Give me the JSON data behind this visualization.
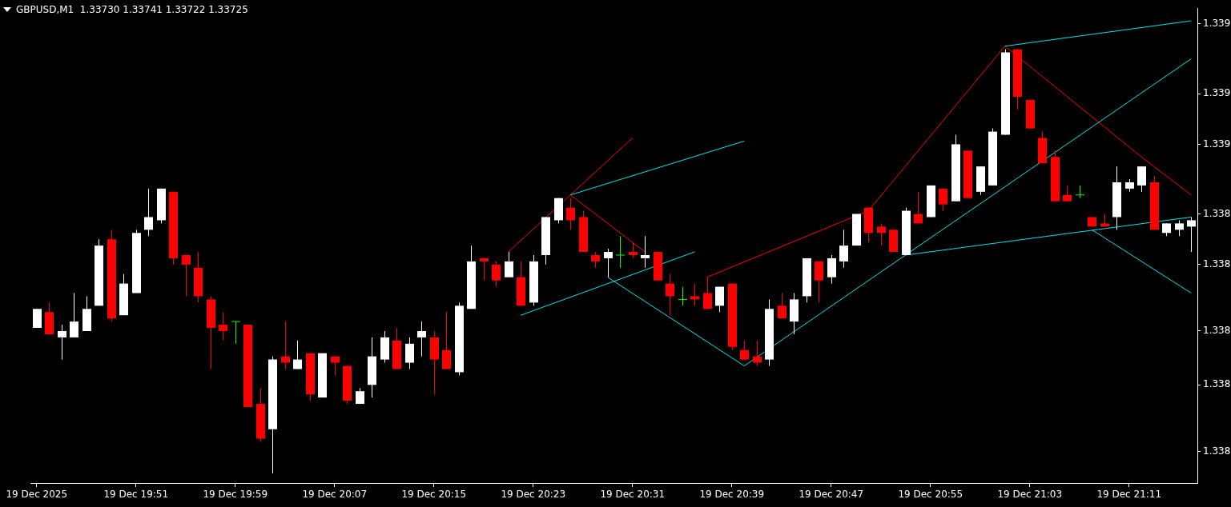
{
  "chart_data": {
    "type": "candlestick",
    "title": "GBPUSD,M1  1.33730 1.33741 1.33722 1.33725",
    "categories": [
      "19 Dec 2025",
      null,
      null,
      null,
      null,
      null,
      null,
      null,
      "19 Dec 19:51",
      null,
      null,
      null,
      null,
      null,
      null,
      null,
      "19 Dec 19:59",
      null,
      null,
      null,
      null,
      null,
      null,
      null,
      "19 Dec 20:07",
      null,
      null,
      null,
      null,
      null,
      null,
      null,
      "19 Dec 20:15",
      null,
      null,
      null,
      null,
      null,
      null,
      null,
      "19 Dec 20:23",
      null,
      null,
      null,
      null,
      null,
      null,
      null,
      "19 Dec 20:31",
      null,
      null,
      null,
      null,
      null,
      null,
      null,
      "19 Dec 20:39",
      null,
      null,
      null,
      null,
      null,
      null,
      null,
      "19 Dec 20:47",
      null,
      null,
      null,
      null,
      null,
      null,
      null,
      "19 Dec 20:55",
      null,
      null,
      null,
      null,
      null,
      null,
      null,
      "19 Dec 21:03",
      null,
      null,
      null,
      null,
      null,
      null,
      null,
      "19 Dec 21:11",
      null,
      null,
      null,
      null,
      null
    ],
    "ohlc": [
      [
        1.33803,
        1.33809,
        1.33803,
        1.33809
      ],
      [
        1.33808,
        1.33811,
        1.33801,
        1.33801
      ],
      [
        1.338,
        1.33804,
        1.33793,
        1.33802
      ],
      [
        1.338,
        1.33814,
        1.338,
        1.33805
      ],
      [
        1.33802,
        1.33813,
        1.33802,
        1.33809
      ],
      [
        1.3381,
        1.33831,
        1.3381,
        1.33829
      ],
      [
        1.33831,
        1.33834,
        1.33805,
        1.33806
      ],
      [
        1.33807,
        1.3382,
        1.33807,
        1.33817
      ],
      [
        1.33814,
        1.33834,
        1.33814,
        1.33833
      ],
      [
        1.33834,
        1.33847,
        1.33832,
        1.33838
      ],
      [
        1.33837,
        1.33847,
        1.33836,
        1.33847
      ],
      [
        1.33846,
        1.33846,
        1.33823,
        1.33825
      ],
      [
        1.33826,
        1.33826,
        1.33813,
        1.33823
      ],
      [
        1.33822,
        1.33827,
        1.33811,
        1.33813
      ],
      [
        1.33812,
        1.33813,
        1.3379,
        1.33803
      ],
      [
        1.33804,
        1.33808,
        1.33799,
        1.33802
      ],
      [
        1.33805,
        1.33805,
        1.33798,
        1.33805
      ],
      [
        1.33804,
        1.33804,
        1.33778,
        1.33778
      ],
      [
        1.33779,
        1.33784,
        1.33767,
        1.33768
      ],
      [
        1.33771,
        1.33794,
        1.33757,
        1.33793
      ],
      [
        1.33794,
        1.33805,
        1.3379,
        1.33792
      ],
      [
        1.3379,
        1.33799,
        1.3379,
        1.33793
      ],
      [
        1.33795,
        1.33795,
        1.3378,
        1.33782
      ],
      [
        1.33781,
        1.33795,
        1.33781,
        1.33795
      ],
      [
        1.33794,
        1.33794,
        1.33788,
        1.33792
      ],
      [
        1.33791,
        1.33791,
        1.33779,
        1.3378
      ],
      [
        1.33779,
        1.33784,
        1.33779,
        1.33783
      ],
      [
        1.33785,
        1.338,
        1.33781,
        1.33794
      ],
      [
        1.33793,
        1.33802,
        1.33792,
        1.338
      ],
      [
        1.33799,
        1.33803,
        1.3379,
        1.3379
      ],
      [
        1.33792,
        1.338,
        1.3379,
        1.33798
      ],
      [
        1.338,
        1.33805,
        1.33794,
        1.33802
      ],
      [
        1.338,
        1.33802,
        1.33782,
        1.33793
      ],
      [
        1.33796,
        1.33808,
        1.3379,
        1.3379
      ],
      [
        1.33789,
        1.33811,
        1.33788,
        1.3381
      ],
      [
        1.33809,
        1.33829,
        1.33809,
        1.33824
      ],
      [
        1.33825,
        1.33825,
        1.33818,
        1.33824
      ],
      [
        1.33823,
        1.33824,
        1.33816,
        1.33818
      ],
      [
        1.33819,
        1.33827,
        1.33819,
        1.33824
      ],
      [
        1.33819,
        1.33824,
        1.3381,
        1.3381
      ],
      [
        1.33811,
        1.33826,
        1.3381,
        1.33824
      ],
      [
        1.33826,
        1.33838,
        1.33823,
        1.33838
      ],
      [
        1.33837,
        1.33844,
        1.33836,
        1.33844
      ],
      [
        1.33841,
        1.33844,
        1.33834,
        1.33837
      ],
      [
        1.33838,
        1.3384,
        1.33827,
        1.33827
      ],
      [
        1.33826,
        1.33827,
        1.33822,
        1.33824
      ],
      [
        1.33825,
        1.33828,
        1.33819,
        1.33827
      ],
      [
        1.33826,
        1.33832,
        1.33822,
        1.33826
      ],
      [
        1.33827,
        1.3383,
        1.33825,
        1.33826
      ],
      [
        1.33825,
        1.33832,
        1.33822,
        1.33826
      ],
      [
        1.33827,
        1.33827,
        1.33818,
        1.33818
      ],
      [
        1.33817,
        1.3382,
        1.33807,
        1.33813
      ],
      [
        1.33812,
        1.33816,
        1.3381,
        1.33812
      ],
      [
        1.33813,
        1.33817,
        1.3381,
        1.33812
      ],
      [
        1.33814,
        1.33819,
        1.33809,
        1.33809
      ],
      [
        1.3381,
        1.33816,
        1.33808,
        1.33816
      ],
      [
        1.33817,
        1.33817,
        1.33796,
        1.33797
      ],
      [
        1.33796,
        1.33799,
        1.33793,
        1.33793
      ],
      [
        1.33794,
        1.33799,
        1.33791,
        1.33792
      ],
      [
        1.33793,
        1.33812,
        1.33791,
        1.33809
      ],
      [
        1.3381,
        1.33814,
        1.33806,
        1.33806
      ],
      [
        1.33805,
        1.33814,
        1.33801,
        1.33812
      ],
      [
        1.33813,
        1.33825,
        1.33811,
        1.33825
      ],
      [
        1.33824,
        1.33824,
        1.33811,
        1.33818
      ],
      [
        1.33819,
        1.33826,
        1.33817,
        1.33825
      ],
      [
        1.33824,
        1.33834,
        1.33822,
        1.33829
      ],
      [
        1.33829,
        1.33839,
        1.33829,
        1.33839
      ],
      [
        1.33841,
        1.33841,
        1.3383,
        1.33833
      ],
      [
        1.33835,
        1.33836,
        1.33829,
        1.33833
      ],
      [
        1.33834,
        1.33834,
        1.33827,
        1.33827
      ],
      [
        1.33826,
        1.33841,
        1.33826,
        1.3384
      ],
      [
        1.33839,
        1.33846,
        1.33836,
        1.33836
      ],
      [
        1.33838,
        1.33848,
        1.33838,
        1.33848
      ],
      [
        1.33847,
        1.33847,
        1.3384,
        1.33842
      ],
      [
        1.33843,
        1.33864,
        1.33843,
        1.33861
      ],
      [
        1.33859,
        1.33859,
        1.33844,
        1.33844
      ],
      [
        1.33846,
        1.33854,
        1.33845,
        1.33854
      ],
      [
        1.33848,
        1.33866,
        1.33848,
        1.33865
      ],
      [
        1.33864,
        1.33891,
        1.33864,
        1.3389
      ],
      [
        1.33891,
        1.33891,
        1.33872,
        1.33876
      ],
      [
        1.33875,
        1.33875,
        1.33866,
        1.33866
      ],
      [
        1.33863,
        1.33865,
        1.33855,
        1.33855
      ],
      [
        1.33857,
        1.33859,
        1.33843,
        1.33843
      ],
      [
        1.33845,
        1.33848,
        1.33843,
        1.33843
      ],
      [
        1.33845,
        1.33848,
        1.33844,
        1.33845
      ],
      [
        1.33838,
        1.33838,
        1.33835,
        1.33835
      ],
      [
        1.33836,
        1.33839,
        1.33835,
        1.33835
      ],
      [
        1.33838,
        1.33854,
        1.33834,
        1.33849
      ],
      [
        1.33847,
        1.3385,
        1.33846,
        1.33849
      ],
      [
        1.33848,
        1.33854,
        1.33846,
        1.33854
      ],
      [
        1.33849,
        1.33851,
        1.33834,
        1.33834
      ],
      [
        1.33833,
        1.33836,
        1.33832,
        1.33836
      ],
      [
        1.33834,
        1.33837,
        1.33832,
        1.33836
      ],
      [
        1.33835,
        1.33838,
        1.33827,
        1.33837
      ]
    ],
    "colors": [
      "#ffffff",
      "#ff0000",
      "#ffffff",
      "#ffffff",
      "#ffffff",
      "#ffffff",
      "#ff0000",
      "#ffffff",
      "#ffffff",
      "#ffffff",
      "#ffffff",
      "#ff0000",
      "#ff0000",
      "#ff0000",
      "#ff0000",
      "#ff0000",
      "#00ff00",
      "#ff0000",
      "#ff0000",
      "#ffffff",
      "#ff0000",
      "#ffffff",
      "#ff0000",
      "#ffffff",
      "#ff0000",
      "#ff0000",
      "#ffffff",
      "#ffffff",
      "#ffffff",
      "#ff0000",
      "#ffffff",
      "#ffffff",
      "#ff0000",
      "#ff0000",
      "#ffffff",
      "#ffffff",
      "#ff0000",
      "#ff0000",
      "#ffffff",
      "#ff0000",
      "#ffffff",
      "#ffffff",
      "#ffffff",
      "#ff0000",
      "#ff0000",
      "#ff0000",
      "#ffffff",
      "#00ff00",
      "#ff0000",
      "#ffffff",
      "#ff0000",
      "#ff0000",
      "#00ff00",
      "#ff0000",
      "#ff0000",
      "#ffffff",
      "#ff0000",
      "#ff0000",
      "#ff0000",
      "#ffffff",
      "#ff0000",
      "#ffffff",
      "#ffffff",
      "#ff0000",
      "#ffffff",
      "#ffffff",
      "#ffffff",
      "#ff0000",
      "#ff0000",
      "#ff0000",
      "#ffffff",
      "#ff0000",
      "#ffffff",
      "#ff0000",
      "#ffffff",
      "#ff0000",
      "#ffffff",
      "#ffffff",
      "#ffffff",
      "#ff0000",
      "#ff0000",
      "#ff0000",
      "#ff0000",
      "#ff0000",
      "#00ff00",
      "#ff0000",
      "#ff0000",
      "#ffffff",
      "#ffffff",
      "#ffffff",
      "#ff0000",
      "#ffffff",
      "#ffffff",
      "#ffffff"
    ],
    "series": [
      {
        "type": "line",
        "color": "#00e5ee",
        "values": [
          null,
          null,
          null,
          null,
          null,
          null,
          null,
          null,
          null,
          null,
          null,
          null,
          null,
          null,
          null,
          null,
          null,
          null,
          null,
          null,
          null,
          null,
          null,
          null,
          null,
          null,
          null,
          null,
          null,
          null,
          null,
          null,
          null,
          null,
          null,
          null,
          null,
          null,
          null,
          1.33807,
          null,
          null,
          null,
          null,
          null,
          null,
          null,
          null,
          null,
          null,
          null,
          null,
          null,
          1.33827,
          null,
          null,
          null,
          null,
          null,
          null,
          null,
          null,
          null,
          null,
          null,
          null,
          null,
          null,
          null,
          null,
          null,
          null,
          null,
          null,
          null,
          null,
          null,
          null,
          null,
          null,
          null,
          null,
          null,
          null,
          null,
          null,
          null,
          null,
          null,
          null,
          null,
          null,
          null,
          null
        ]
      },
      {
        "type": "line",
        "color": "#00e5ee",
        "values": [
          null,
          null,
          null,
          null,
          null,
          null,
          null,
          null,
          null,
          null,
          null,
          null,
          null,
          null,
          null,
          null,
          null,
          null,
          null,
          null,
          null,
          null,
          null,
          null,
          null,
          null,
          null,
          null,
          null,
          null,
          null,
          null,
          null,
          null,
          null,
          null,
          null,
          null,
          null,
          null,
          null,
          null,
          null,
          1.33845,
          null,
          null,
          null,
          null,
          null,
          null,
          null,
          null,
          null,
          null,
          null,
          null,
          null,
          1.33862,
          null,
          null,
          null,
          null,
          null,
          null,
          null,
          null,
          null,
          null,
          null,
          null,
          null,
          null,
          null,
          null,
          null,
          null,
          null,
          null,
          null,
          null,
          null,
          null,
          null,
          null,
          null,
          null,
          null,
          null,
          null,
          null,
          null,
          null,
          null,
          null
        ]
      },
      {
        "type": "line",
        "color": "#00e5ee",
        "values": [
          null,
          null,
          null,
          null,
          null,
          null,
          null,
          null,
          null,
          null,
          null,
          null,
          null,
          null,
          null,
          null,
          null,
          null,
          null,
          null,
          null,
          null,
          null,
          null,
          null,
          null,
          null,
          null,
          null,
          null,
          null,
          null,
          null,
          null,
          null,
          null,
          null,
          null,
          null,
          null,
          null,
          null,
          null,
          null,
          null,
          null,
          1.33819,
          null,
          null,
          null,
          null,
          null,
          null,
          null,
          null,
          null,
          null,
          1.33791,
          null,
          null,
          null,
          null,
          null,
          null,
          null,
          null,
          null,
          null,
          null,
          null,
          null,
          null,
          null,
          null,
          null,
          null,
          null,
          null,
          null,
          null,
          null,
          null,
          null,
          null,
          null,
          null,
          null,
          null,
          null,
          null,
          null,
          null,
          null,
          null
        ]
      },
      {
        "type": "line",
        "color": "#00e5ee",
        "values": [
          null,
          null,
          null,
          null,
          null,
          null,
          null,
          null,
          null,
          null,
          null,
          null,
          null,
          null,
          null,
          null,
          null,
          null,
          null,
          null,
          null,
          null,
          null,
          null,
          null,
          null,
          null,
          null,
          null,
          null,
          null,
          null,
          null,
          null,
          null,
          null,
          null,
          null,
          null,
          null,
          null,
          null,
          null,
          null,
          null,
          null,
          null,
          null,
          null,
          null,
          null,
          null,
          null,
          null,
          null,
          null,
          null,
          1.33791,
          null,
          null,
          null,
          null,
          null,
          null,
          null,
          null,
          null,
          null,
          null,
          null,
          null,
          null,
          null,
          null,
          null,
          null,
          null,
          null,
          null,
          null,
          null,
          null,
          null,
          null,
          null,
          null,
          null,
          null,
          null,
          null,
          null,
          null,
          null,
          1.33888
        ]
      },
      {
        "type": "line",
        "color": "#00e5ee",
        "values": [
          null,
          null,
          null,
          null,
          null,
          null,
          null,
          null,
          null,
          null,
          null,
          null,
          null,
          null,
          null,
          null,
          null,
          null,
          null,
          null,
          null,
          null,
          null,
          null,
          null,
          null,
          null,
          null,
          null,
          null,
          null,
          null,
          null,
          null,
          null,
          null,
          null,
          null,
          null,
          null,
          null,
          null,
          null,
          null,
          null,
          null,
          null,
          null,
          null,
          null,
          null,
          null,
          null,
          null,
          null,
          null,
          null,
          null,
          null,
          null,
          null,
          null,
          null,
          null,
          null,
          null,
          null,
          null,
          null,
          null,
          1.33826,
          null,
          null,
          null,
          null,
          null,
          null,
          null,
          null,
          null,
          null,
          null,
          null,
          null,
          null,
          null,
          null,
          null,
          null,
          null,
          null,
          null,
          null,
          1.33838
        ]
      },
      {
        "type": "line",
        "color": "#00e5ee",
        "values": [
          null,
          null,
          null,
          null,
          null,
          null,
          null,
          null,
          null,
          null,
          null,
          null,
          null,
          null,
          null,
          null,
          null,
          null,
          null,
          null,
          null,
          null,
          null,
          null,
          null,
          null,
          null,
          null,
          null,
          null,
          null,
          null,
          null,
          null,
          null,
          null,
          null,
          null,
          null,
          null,
          null,
          null,
          null,
          null,
          null,
          null,
          null,
          null,
          null,
          null,
          null,
          null,
          null,
          null,
          null,
          null,
          null,
          null,
          null,
          null,
          null,
          null,
          null,
          null,
          null,
          null,
          null,
          null,
          null,
          null,
          null,
          null,
          null,
          null,
          null,
          null,
          null,
          null,
          1.33892,
          null,
          null,
          null,
          null,
          null,
          null,
          null,
          null,
          null,
          null,
          null,
          null,
          null,
          null,
          1.339
        ]
      },
      {
        "type": "line",
        "color": "#00e5ee",
        "values": [
          null,
          null,
          null,
          null,
          null,
          null,
          null,
          null,
          null,
          null,
          null,
          null,
          null,
          null,
          null,
          null,
          null,
          null,
          null,
          null,
          null,
          null,
          null,
          null,
          null,
          null,
          null,
          null,
          null,
          null,
          null,
          null,
          null,
          null,
          null,
          null,
          null,
          null,
          null,
          null,
          null,
          null,
          null,
          null,
          null,
          null,
          null,
          null,
          null,
          null,
          null,
          null,
          null,
          null,
          null,
          null,
          null,
          null,
          null,
          null,
          null,
          null,
          null,
          null,
          null,
          null,
          null,
          null,
          null,
          null,
          null,
          null,
          null,
          null,
          null,
          null,
          null,
          null,
          null,
          null,
          null,
          null,
          null,
          null,
          null,
          1.33834,
          null,
          null,
          null,
          null,
          null,
          null,
          null,
          1.33814
        ]
      },
      {
        "type": "line",
        "color": "#ff0000",
        "values": [
          null,
          null,
          null,
          null,
          null,
          null,
          null,
          null,
          null,
          null,
          null,
          null,
          null,
          null,
          null,
          null,
          null,
          null,
          null,
          null,
          null,
          null,
          null,
          null,
          null,
          null,
          null,
          null,
          null,
          null,
          null,
          null,
          null,
          null,
          null,
          null,
          null,
          null,
          1.33827,
          null,
          null,
          null,
          null,
          null,
          null,
          null,
          null,
          null,
          1.33863,
          null,
          null,
          null,
          null,
          null,
          null,
          null,
          null,
          null,
          null,
          null,
          null,
          null,
          null,
          null,
          null,
          null,
          null,
          null,
          null,
          null,
          null,
          null,
          null,
          null,
          null,
          null,
          null,
          null,
          null,
          null,
          null,
          null,
          null,
          null,
          null,
          null,
          null,
          null,
          null,
          null,
          null,
          null,
          null,
          null
        ]
      },
      {
        "type": "line",
        "color": "#ff0000",
        "values": [
          null,
          null,
          null,
          null,
          null,
          null,
          null,
          null,
          null,
          null,
          null,
          null,
          null,
          null,
          null,
          null,
          null,
          null,
          null,
          null,
          null,
          null,
          null,
          null,
          null,
          null,
          null,
          null,
          null,
          null,
          null,
          null,
          null,
          null,
          null,
          null,
          null,
          null,
          null,
          null,
          null,
          null,
          null,
          1.33845,
          null,
          null,
          null,
          null,
          null,
          1.33827,
          null,
          null,
          null,
          null,
          null,
          null,
          null,
          null,
          null,
          null,
          null,
          null,
          null,
          null,
          null,
          null,
          null,
          null,
          null,
          null,
          null,
          null,
          null,
          null,
          null,
          null,
          null,
          null,
          null,
          null,
          null,
          null,
          null,
          null,
          null,
          null,
          null,
          null,
          null,
          null,
          null,
          null,
          null,
          null
        ]
      },
      {
        "type": "line",
        "color": "#ff0000",
        "values": [
          null,
          null,
          null,
          null,
          null,
          null,
          null,
          null,
          null,
          null,
          null,
          null,
          null,
          null,
          null,
          null,
          null,
          null,
          null,
          null,
          null,
          null,
          null,
          null,
          null,
          null,
          null,
          null,
          null,
          null,
          null,
          null,
          null,
          null,
          null,
          null,
          null,
          null,
          null,
          null,
          null,
          null,
          null,
          null,
          null,
          null,
          null,
          null,
          null,
          null,
          null,
          null,
          null,
          null,
          1.33819,
          null,
          null,
          null,
          null,
          null,
          null,
          null,
          null,
          null,
          null,
          null,
          null,
          1.3384,
          null,
          null,
          null,
          null,
          null,
          null,
          null,
          null,
          null,
          null,
          1.33892,
          null,
          null,
          null,
          null,
          null,
          null,
          null,
          null,
          null,
          null,
          null,
          null,
          null,
          null,
          null
        ]
      },
      {
        "type": "line",
        "color": "#ff0000",
        "values": [
          null,
          null,
          null,
          null,
          null,
          null,
          null,
          null,
          null,
          null,
          null,
          null,
          null,
          null,
          null,
          null,
          null,
          null,
          null,
          null,
          null,
          null,
          null,
          null,
          null,
          null,
          null,
          null,
          null,
          null,
          null,
          null,
          null,
          null,
          null,
          null,
          null,
          null,
          null,
          null,
          null,
          null,
          null,
          null,
          null,
          null,
          null,
          null,
          null,
          null,
          null,
          null,
          null,
          null,
          null,
          null,
          null,
          null,
          null,
          null,
          null,
          null,
          null,
          null,
          null,
          null,
          null,
          null,
          null,
          null,
          null,
          null,
          null,
          null,
          null,
          null,
          null,
          null,
          1.33892,
          null,
          null,
          null,
          null,
          null,
          null,
          null,
          null,
          null,
          null,
          1.33857,
          null,
          null,
          null,
          1.33845
        ]
      }
    ],
    "ylim": [
      1.33754,
      1.33904
    ],
    "yticks": [
      {
        "value": 1.33899,
        "label": "1.339"
      },
      {
        "value": 1.33877,
        "label": "1.339"
      },
      {
        "value": 1.33861,
        "label": "1.339"
      },
      {
        "value": 1.33839,
        "label": "1.338"
      },
      {
        "value": 1.33823,
        "label": "1.338"
      },
      {
        "value": 1.33802,
        "label": "1.338"
      },
      {
        "value": 1.33785,
        "label": "1.338"
      },
      {
        "value": 1.33764,
        "label": "1.338"
      }
    ],
    "grid": false,
    "legend": false
  }
}
